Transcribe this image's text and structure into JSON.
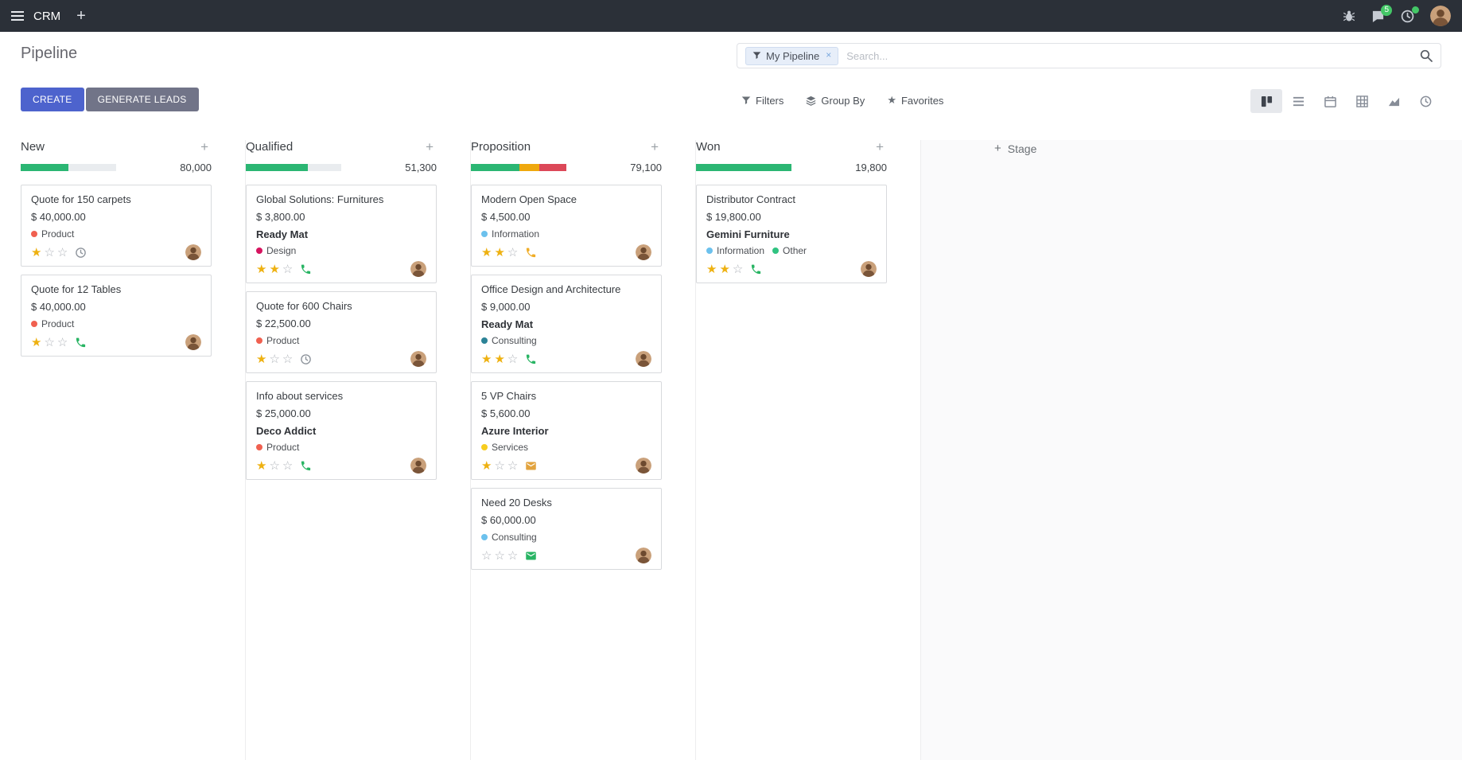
{
  "icons": {
    "plus": "+",
    "close": "×",
    "star": "★"
  },
  "topbar": {
    "app_name": "CRM",
    "message_badge": "5"
  },
  "control_panel": {
    "title": "Pipeline",
    "search": {
      "facet_label": "My Pipeline",
      "placeholder": "Search..."
    },
    "create_label": "CREATE",
    "generate_leads_label": "GENERATE LEADS",
    "filters_label": "Filters",
    "group_by_label": "Group By",
    "favorites_label": "Favorites"
  },
  "kanban": {
    "add_stage_label": "Stage",
    "colors": {
      "success": "#2bb673",
      "warning": "#efa80d",
      "danger": "#dc4858"
    },
    "columns": [
      {
        "name": "New",
        "total": "80,000",
        "progress": [
          {
            "type": "success",
            "pct": 50
          }
        ],
        "cards": [
          {
            "title": "Quote for 150 carpets",
            "amount": "$ 40,000.00",
            "partner": "",
            "tags": [
              {
                "label": "Product",
                "color": "#f06050"
              }
            ],
            "stars": 1,
            "activity": {
              "icon": "clock",
              "color": "#8f959d"
            }
          },
          {
            "title": "Quote for 12 Tables",
            "amount": "$ 40,000.00",
            "partner": "",
            "tags": [
              {
                "label": "Product",
                "color": "#f06050"
              }
            ],
            "stars": 1,
            "activity": {
              "icon": "phone",
              "color": "#28b463"
            }
          }
        ]
      },
      {
        "name": "Qualified",
        "total": "51,300",
        "progress": [
          {
            "type": "success",
            "pct": 65
          }
        ],
        "cards": [
          {
            "title": "Global Solutions: Furnitures",
            "amount": "$ 3,800.00",
            "partner": "Ready Mat",
            "tags": [
              {
                "label": "Design",
                "color": "#d6145f"
              }
            ],
            "stars": 2,
            "activity": {
              "icon": "phone",
              "color": "#28b463"
            }
          },
          {
            "title": "Quote for 600 Chairs",
            "amount": "$ 22,500.00",
            "partner": "",
            "tags": [
              {
                "label": "Product",
                "color": "#f06050"
              }
            ],
            "stars": 1,
            "activity": {
              "icon": "clock",
              "color": "#8f959d"
            }
          },
          {
            "title": "Info about services",
            "amount": "$ 25,000.00",
            "partner": "Deco Addict",
            "tags": [
              {
                "label": "Product",
                "color": "#f06050"
              }
            ],
            "stars": 1,
            "activity": {
              "icon": "phone",
              "color": "#28b463"
            }
          }
        ]
      },
      {
        "name": "Proposition",
        "total": "79,100",
        "progress": [
          {
            "type": "success",
            "pct": 51
          },
          {
            "type": "warning",
            "pct": 21
          },
          {
            "type": "danger",
            "pct": 28
          }
        ],
        "cards": [
          {
            "title": "Modern Open Space",
            "amount": "$ 4,500.00",
            "partner": "",
            "tags": [
              {
                "label": "Information",
                "color": "#6cc1ed"
              }
            ],
            "stars": 2,
            "activity": {
              "icon": "phone",
              "color": "#f0ad27"
            }
          },
          {
            "title": "Office Design and Architecture",
            "amount": "$ 9,000.00",
            "partner": "Ready Mat",
            "tags": [
              {
                "label": "Consulting",
                "color": "#2c8397"
              }
            ],
            "stars": 2,
            "activity": {
              "icon": "phone",
              "color": "#28b463"
            }
          },
          {
            "title": "5 VP Chairs",
            "amount": "$ 5,600.00",
            "partner": "Azure Interior",
            "tags": [
              {
                "label": "Services",
                "color": "#f7cd1f"
              }
            ],
            "stars": 1,
            "activity": {
              "icon": "envelope",
              "color": "#e2a33e"
            }
          },
          {
            "title": "Need 20 Desks",
            "amount": "$ 60,000.00",
            "partner": "",
            "tags": [
              {
                "label": "Consulting",
                "color": "#6cc1ed"
              }
            ],
            "stars": 0,
            "activity": {
              "icon": "envelope",
              "color": "#28b463"
            }
          }
        ]
      },
      {
        "name": "Won",
        "total": "19,800",
        "progress": [
          {
            "type": "success",
            "pct": 100
          }
        ],
        "cards": [
          {
            "title": "Distributor Contract",
            "amount": "$ 19,800.00",
            "partner": "Gemini Furniture",
            "tags": [
              {
                "label": "Information",
                "color": "#6cc1ed"
              },
              {
                "label": "Other",
                "color": "#30c381"
              }
            ],
            "stars": 2,
            "activity": {
              "icon": "phone",
              "color": "#28b463"
            }
          }
        ]
      }
    ]
  }
}
